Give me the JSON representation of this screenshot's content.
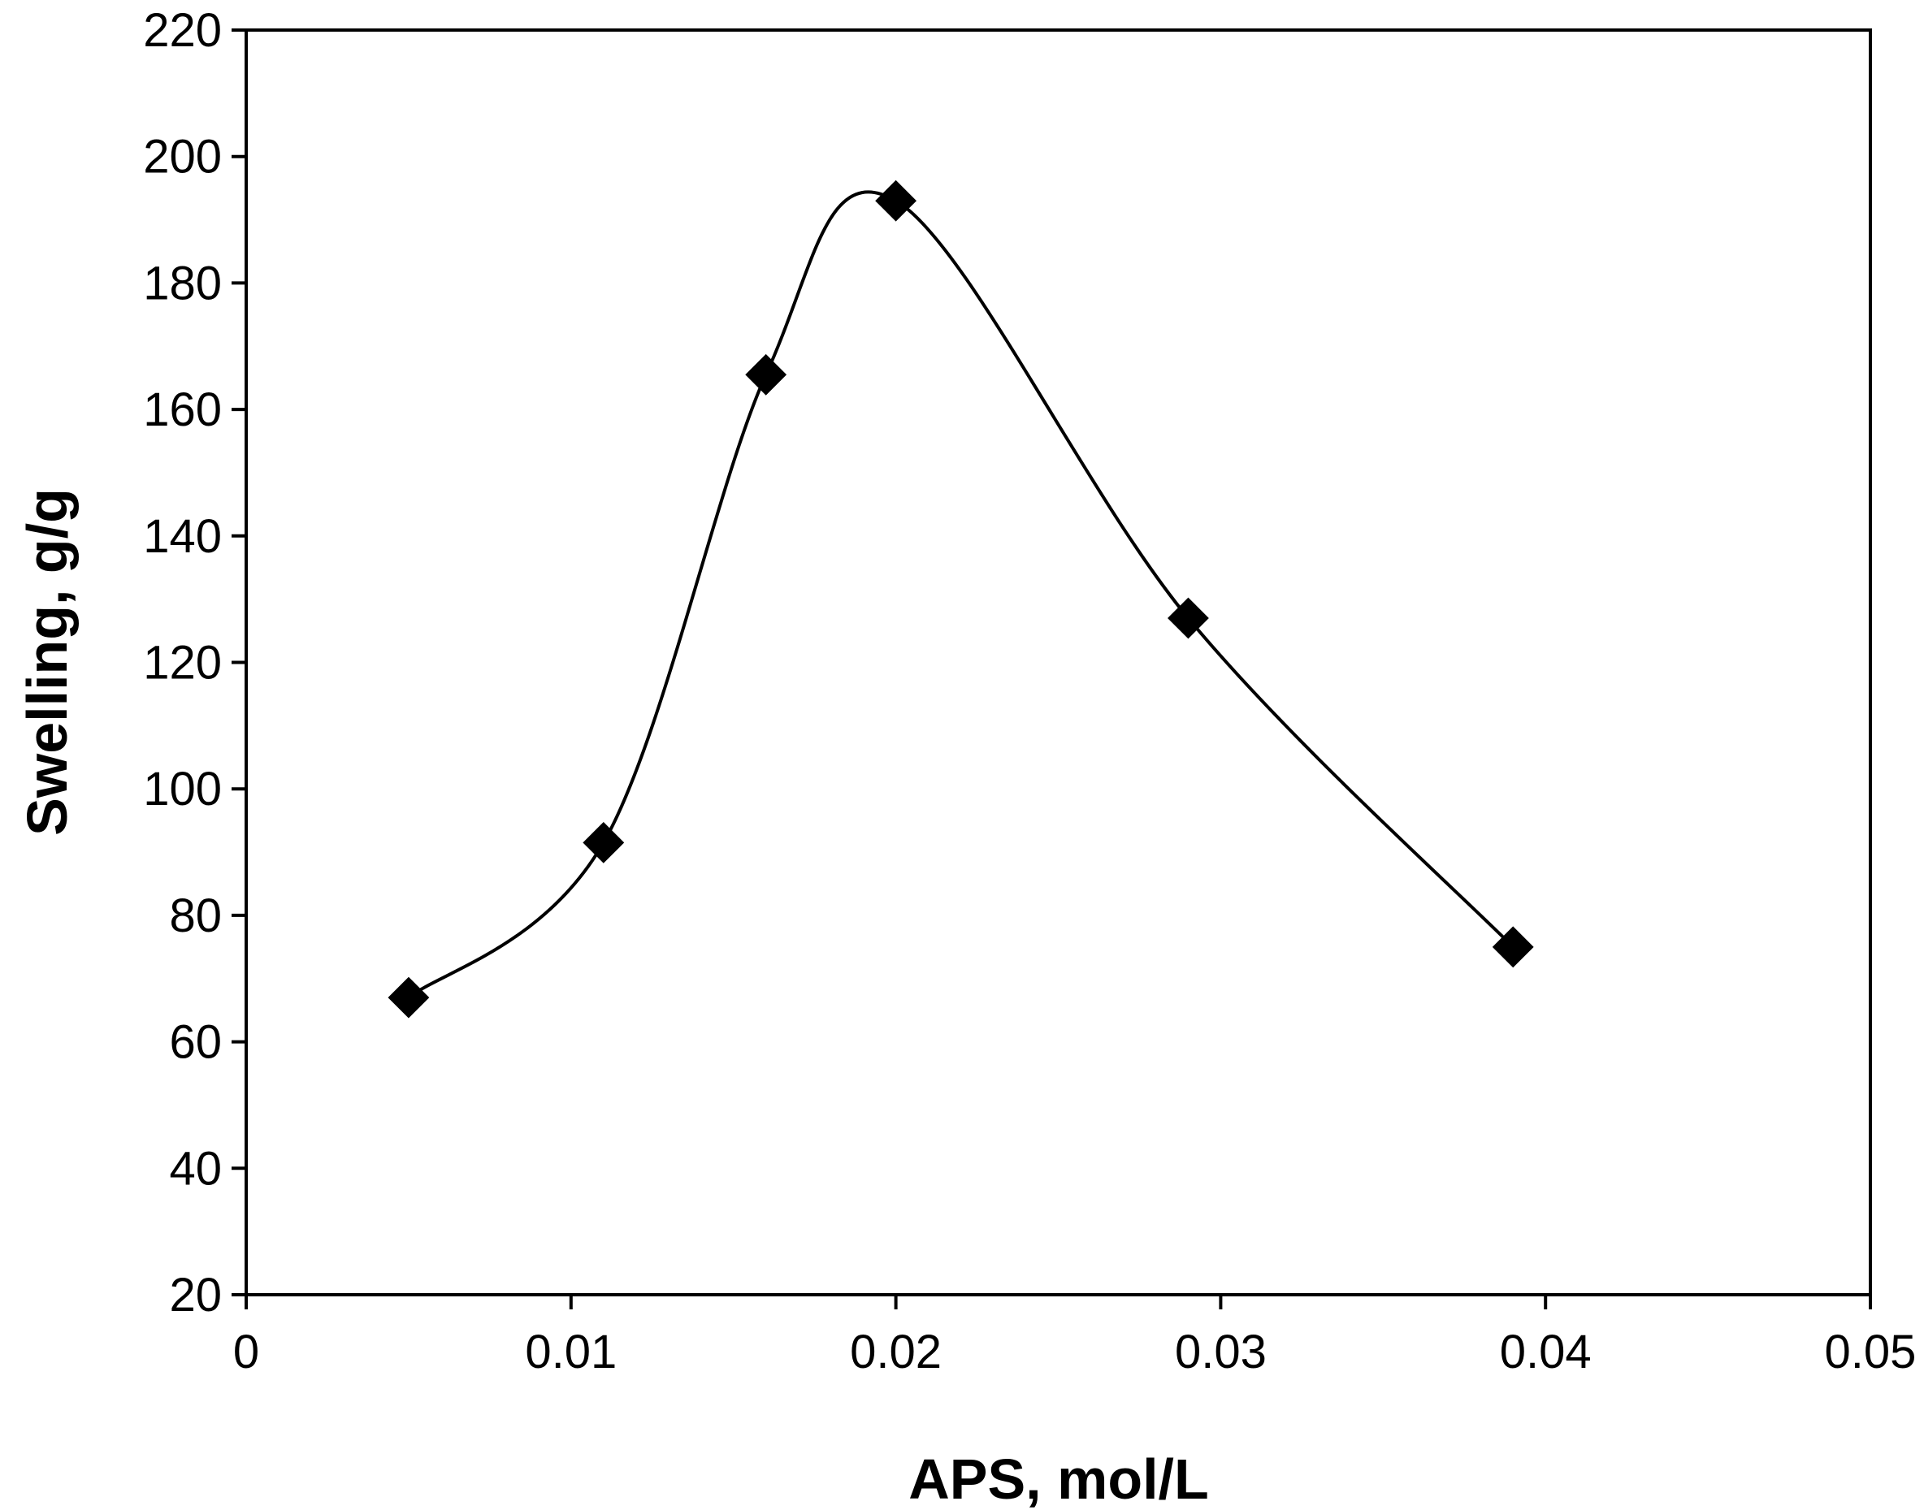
{
  "chart_data": {
    "type": "line",
    "title": "",
    "xlabel": "APS, mol/L",
    "ylabel": "Swelling, g/g",
    "xlim": [
      0,
      0.05
    ],
    "ylim": [
      20,
      220
    ],
    "x_ticks": [
      "0",
      "0.01",
      "0.02",
      "0.03",
      "0.04",
      "0.05"
    ],
    "y_ticks": [
      "20",
      "40",
      "60",
      "80",
      "100",
      "120",
      "140",
      "160",
      "180",
      "200",
      "220"
    ],
    "grid": false,
    "legend": "none",
    "line_style": "smoothed",
    "marker": "diamond",
    "color": "#000000",
    "series": [
      {
        "x": [
          0.005,
          0.011,
          0.016,
          0.02,
          0.029,
          0.039
        ],
        "y": [
          67,
          91.5,
          165.5,
          193,
          127,
          75
        ]
      }
    ]
  }
}
